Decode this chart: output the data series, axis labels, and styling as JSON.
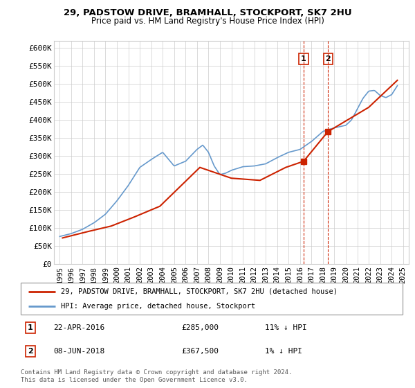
{
  "title1": "29, PADSTOW DRIVE, BRAMHALL, STOCKPORT, SK7 2HU",
  "title2": "Price paid vs. HM Land Registry's House Price Index (HPI)",
  "ylabel_ticks": [
    "£0",
    "£50K",
    "£100K",
    "£150K",
    "£200K",
    "£250K",
    "£300K",
    "£350K",
    "£400K",
    "£450K",
    "£500K",
    "£550K",
    "£600K"
  ],
  "ytick_values": [
    0,
    50000,
    100000,
    150000,
    200000,
    250000,
    300000,
    350000,
    400000,
    450000,
    500000,
    550000,
    600000
  ],
  "ylim": [
    0,
    620000
  ],
  "xlim_start": 1994.5,
  "xlim_end": 2025.5,
  "xtick_labels": [
    "1995",
    "1996",
    "1997",
    "1998",
    "1999",
    "2000",
    "2001",
    "2002",
    "2003",
    "2004",
    "2005",
    "2006",
    "2007",
    "2008",
    "2009",
    "2010",
    "2011",
    "2012",
    "2013",
    "2014",
    "2015",
    "2016",
    "2017",
    "2018",
    "2019",
    "2020",
    "2021",
    "2022",
    "2023",
    "2024",
    "2025"
  ],
  "xtick_values": [
    1995,
    1996,
    1997,
    1998,
    1999,
    2000,
    2001,
    2002,
    2003,
    2004,
    2005,
    2006,
    2007,
    2008,
    2009,
    2010,
    2011,
    2012,
    2013,
    2014,
    2015,
    2016,
    2017,
    2018,
    2019,
    2020,
    2021,
    2022,
    2023,
    2024,
    2025
  ],
  "hpi_color": "#6699cc",
  "price_color": "#cc2200",
  "vline_color": "#cc2200",
  "marker1_x": 2016.31,
  "marker1_y": 285000,
  "marker2_x": 2018.44,
  "marker2_y": 367500,
  "legend_label1": "29, PADSTOW DRIVE, BRAMHALL, STOCKPORT, SK7 2HU (detached house)",
  "legend_label2": "HPI: Average price, detached house, Stockport",
  "note1_label": "1",
  "note1_date": "22-APR-2016",
  "note1_price": "£285,000",
  "note1_change": "11% ↓ HPI",
  "note2_label": "2",
  "note2_date": "08-JUN-2018",
  "note2_price": "£367,500",
  "note2_change": "1% ↓ HPI",
  "footer": "Contains HM Land Registry data © Crown copyright and database right 2024.\nThis data is licensed under the Open Government Licence v3.0.",
  "price_x": [
    1995.25,
    1997.5,
    1999.5,
    2001.5,
    2003.75,
    2007.25,
    2010.0,
    2012.5,
    2014.75,
    2016.31,
    2018.44,
    2022.0,
    2024.5
  ],
  "price_y": [
    72000,
    90000,
    105000,
    130000,
    160000,
    268000,
    238000,
    232000,
    268000,
    285000,
    367500,
    435000,
    510000
  ]
}
